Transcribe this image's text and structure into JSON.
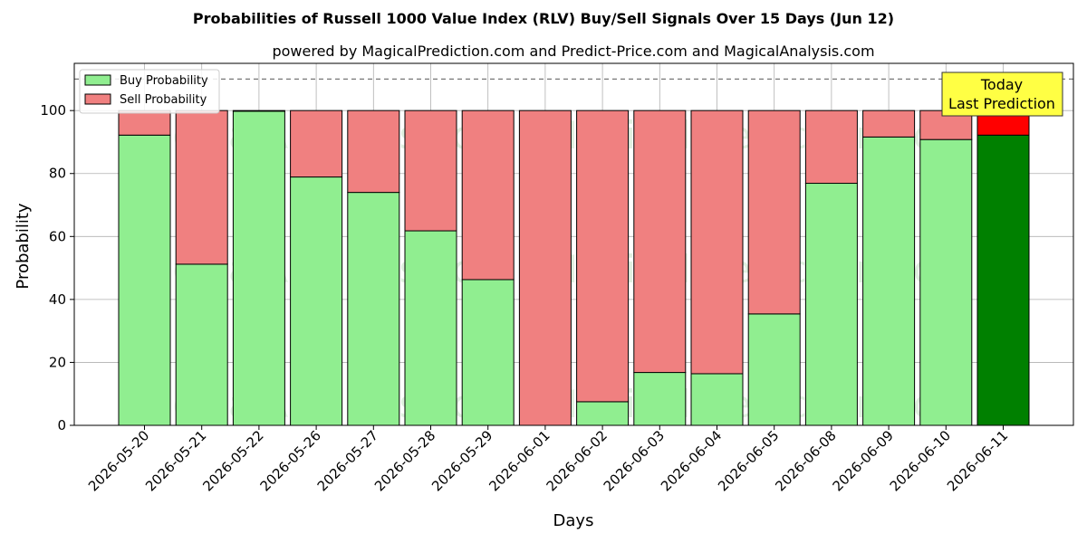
{
  "chart_data": {
    "type": "bar",
    "stacked": true,
    "title": "Probabilities of Russell 1000 Value Index (RLV) Buy/Sell Signals Over 15 Days (Jun 12)",
    "subtitle": "powered by MagicalPrediction.com and Predict-Price.com and MagicalAnalysis.com",
    "xlabel": "Days",
    "ylabel": "Probability",
    "ylim": [
      0,
      115
    ],
    "yticks": [
      0,
      20,
      40,
      60,
      80,
      100
    ],
    "grid": true,
    "legend_position": "top-left",
    "reference_line": 110,
    "categories": [
      "2026-05-20",
      "2026-05-21",
      "2026-05-22",
      "2026-05-26",
      "2026-05-27",
      "2026-05-28",
      "2026-05-29",
      "2026-06-01",
      "2026-06-02",
      "2026-06-03",
      "2026-06-04",
      "2026-06-05",
      "2026-06-08",
      "2026-06-09",
      "2026-06-10",
      "2026-06-11"
    ],
    "series": [
      {
        "name": "Buy Probability",
        "color": "#90ee90",
        "highlight_color": "#008000",
        "values": [
          92.2,
          51.2,
          99.8,
          78.9,
          74.0,
          61.8,
          46.3,
          0.0,
          7.5,
          16.8,
          16.4,
          35.4,
          76.9,
          91.6,
          90.8,
          92.2
        ]
      },
      {
        "name": "Sell Probability",
        "color": "#f08080",
        "highlight_color": "#ff0000",
        "values": [
          7.8,
          48.8,
          0.2,
          21.1,
          26.0,
          38.2,
          53.7,
          100.0,
          92.5,
          83.2,
          83.6,
          64.6,
          23.1,
          8.4,
          9.2,
          7.8
        ]
      }
    ],
    "highlight_index": 15,
    "annotation": {
      "line1": "Today",
      "line2": "Last Prediction",
      "color": "#ffff44"
    },
    "watermarks": [
      "MagicalAnalysis.com",
      "MagicalPrediction.com"
    ]
  }
}
